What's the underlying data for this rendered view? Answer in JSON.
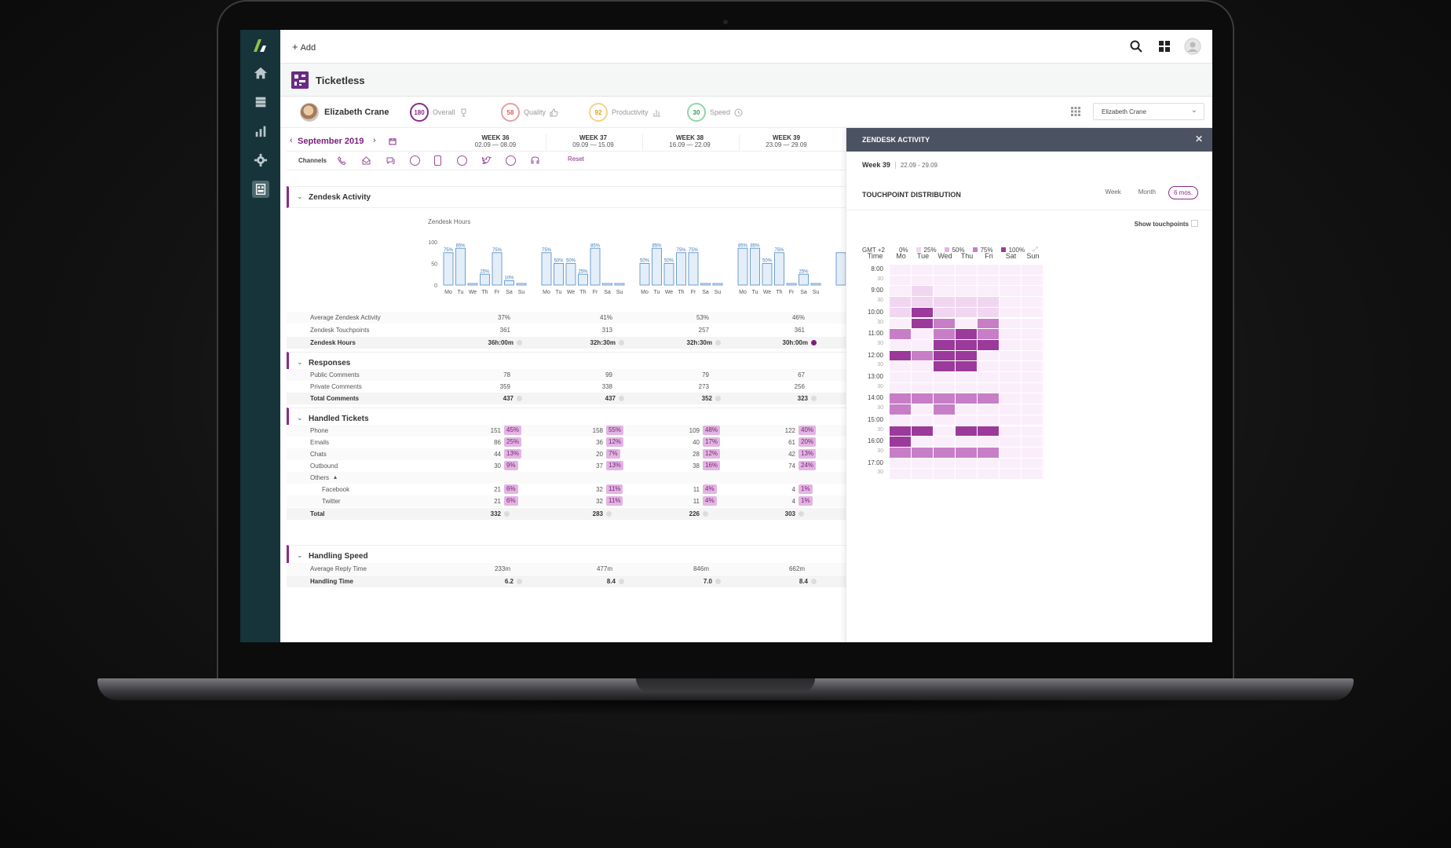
{
  "topbar": {
    "add_label": "Add"
  },
  "app": {
    "title": "Ticketless"
  },
  "agent": {
    "name": "Elizabeth Crane",
    "selector_value": "Elizabeth Crane",
    "scores": [
      {
        "value": "180",
        "label": "Overall",
        "color": "#8a2a8a"
      },
      {
        "value": "58",
        "label": "Quality",
        "color": "#e05a5a"
      },
      {
        "value": "92",
        "label": "Productivity",
        "color": "#f0b63a"
      },
      {
        "value": "30",
        "label": "Speed",
        "color": "#3fb36b"
      }
    ]
  },
  "period": {
    "month": "September 2019",
    "weeks": [
      {
        "name": "WEEK 36",
        "range": "02.09 — 08.09"
      },
      {
        "name": "WEEK 37",
        "range": "09.09 — 15.09"
      },
      {
        "name": "WEEK 38",
        "range": "16.09 — 22.09"
      },
      {
        "name": "WEEK 39",
        "range": "23.09 — 29.09"
      }
    ]
  },
  "channels": {
    "label": "Channels",
    "reset_label": "Reset"
  },
  "sections": {
    "zendesk_activity": "Zendesk Activity",
    "responses": "Responses",
    "handled_tickets": "Handled Tickets",
    "handling_speed": "Handling Speed"
  },
  "chart_data": {
    "type": "bar",
    "title": "Zendesk Hours",
    "ylim": [
      0,
      100
    ],
    "yticks": [
      "100",
      "50",
      "0"
    ],
    "day_labels": [
      "Mo",
      "Tu",
      "We",
      "Th",
      "Fr",
      "Sa",
      "Su"
    ],
    "series": [
      {
        "name": "WEEK 36",
        "values": [
          75,
          85,
          0,
          25,
          75,
          10,
          0
        ],
        "labels": [
          "75%",
          "85%",
          "",
          "25%",
          "75%",
          "10%",
          ""
        ]
      },
      {
        "name": "WEEK 37",
        "values": [
          75,
          50,
          50,
          25,
          85,
          0,
          0
        ],
        "labels": [
          "75%",
          "50%",
          "50%",
          "25%",
          "85%",
          "",
          ""
        ]
      },
      {
        "name": "WEEK 38",
        "values": [
          50,
          85,
          50,
          75,
          75,
          0,
          0
        ],
        "labels": [
          "50%",
          "85%",
          "50%",
          "75%",
          "75%",
          "",
          ""
        ]
      },
      {
        "name": "WEEK 39",
        "values": [
          85,
          85,
          50,
          75,
          0,
          25,
          0
        ],
        "labels": [
          "85%",
          "85%",
          "50%",
          "75%",
          "",
          "25%",
          ""
        ]
      }
    ]
  },
  "rows": {
    "avg_activity": {
      "label": "Average Zendesk Activity",
      "values": [
        "37%",
        "41%",
        "53%",
        "46%"
      ]
    },
    "touchpoints": {
      "label": "Zendesk Touchpoints",
      "values": [
        "361",
        "313",
        "257",
        "361"
      ]
    },
    "zendesk_hours": {
      "label": "Zendesk Hours",
      "values": [
        "36h:00m",
        "32h:30m",
        "32h:30m",
        "30h:00m"
      ]
    },
    "public_comments": {
      "label": "Public Comments",
      "values": [
        "78",
        "99",
        "79",
        "67"
      ]
    },
    "private_comments": {
      "label": "Private Comments",
      "values": [
        "359",
        "338",
        "273",
        "256"
      ]
    },
    "total_comments": {
      "label": "Total Comments",
      "values": [
        "437",
        "437",
        "352",
        "323"
      ]
    },
    "phone": {
      "label": "Phone",
      "values": [
        "151",
        "158",
        "109",
        "122"
      ],
      "pcts": [
        "45%",
        "55%",
        "48%",
        "40%"
      ]
    },
    "emails": {
      "label": "Emails",
      "values": [
        "86",
        "36",
        "40",
        "61"
      ],
      "pcts": [
        "25%",
        "12%",
        "17%",
        "20%"
      ]
    },
    "chats": {
      "label": "Chats",
      "values": [
        "44",
        "20",
        "28",
        "42"
      ],
      "pcts": [
        "13%",
        "7%",
        "12%",
        "13%"
      ]
    },
    "outbound": {
      "label": "Outbound",
      "values": [
        "30",
        "37",
        "38",
        "74"
      ],
      "pcts": [
        "9%",
        "13%",
        "16%",
        "24%"
      ]
    },
    "others": {
      "label": "Others"
    },
    "facebook": {
      "label": "Facebook",
      "values": [
        "21",
        "32",
        "11",
        "4"
      ],
      "pcts": [
        "6%",
        "11%",
        "4%",
        "1%"
      ]
    },
    "twitter": {
      "label": "Twitter",
      "values": [
        "21",
        "32",
        "11",
        "4"
      ],
      "pcts": [
        "6%",
        "11%",
        "4%",
        "1%"
      ]
    },
    "total": {
      "label": "Total",
      "values": [
        "332",
        "283",
        "226",
        "303"
      ]
    },
    "avg_reply": {
      "label": "Average Reply Time",
      "values": [
        "233m",
        "477m",
        "846m",
        "662m"
      ]
    },
    "handling_time": {
      "label": "Handling Time",
      "values": [
        "6.2",
        "8.4",
        "7.0",
        "8.4"
      ]
    }
  },
  "panel": {
    "title": "ZENDESK ACTIVITY",
    "week": "Week 39",
    "week_range": "22.09 - 29.09",
    "distribution_title": "TOUCHPOINT DISTRIBUTION",
    "tabs": [
      "Week",
      "Month",
      "6 mos."
    ],
    "active_tab": "6 mos.",
    "show_touchpoints": "Show touchpoints",
    "timezone": "GMT +2",
    "legend": [
      {
        "label": "0%",
        "color": ""
      },
      {
        "label": "25%",
        "color": "#f1d6f1"
      },
      {
        "label": "50%",
        "color": "#e3b4e3"
      },
      {
        "label": "75%",
        "color": "#c77ec7"
      },
      {
        "label": "100%",
        "color": "#9b3a9b"
      }
    ],
    "time_header": "Time",
    "days": [
      "Mo",
      "Tue",
      "Wed",
      "Thu",
      "Fri",
      "Sat",
      "Sun"
    ],
    "times": [
      "8:00",
      "30",
      "9:00",
      "30",
      "10:00",
      "30",
      "11:00",
      "30",
      "12:00",
      "30",
      "13:00",
      "30",
      "14:00",
      "30",
      "15:00",
      "30",
      "16:00",
      "30",
      "17:00",
      "30"
    ],
    "heatmap": [
      [
        0,
        0,
        0,
        0,
        0,
        0,
        0
      ],
      [
        0,
        0,
        0,
        0,
        0,
        0,
        0
      ],
      [
        0,
        1,
        0,
        0,
        0,
        0,
        0
      ],
      [
        1,
        1,
        1,
        1,
        1,
        0,
        0
      ],
      [
        1,
        4,
        1,
        1,
        1,
        0,
        0
      ],
      [
        0,
        4,
        3,
        0,
        3,
        0,
        0
      ],
      [
        3,
        0,
        3,
        4,
        3,
        0,
        0
      ],
      [
        0,
        0,
        4,
        4,
        4,
        0,
        0
      ],
      [
        4,
        3,
        4,
        4,
        0,
        0,
        0
      ],
      [
        0,
        0,
        4,
        4,
        0,
        0,
        0
      ],
      [
        0,
        0,
        0,
        0,
        0,
        0,
        0
      ],
      [
        0,
        0,
        0,
        0,
        0,
        0,
        0
      ],
      [
        3,
        3,
        3,
        3,
        3,
        0,
        0
      ],
      [
        3,
        0,
        3,
        0,
        0,
        0,
        0
      ],
      [
        0,
        0,
        0,
        0,
        0,
        0,
        0
      ],
      [
        4,
        4,
        0,
        4,
        4,
        0,
        0
      ],
      [
        4,
        0,
        0,
        0,
        0,
        0,
        0
      ],
      [
        3,
        3,
        3,
        3,
        3,
        0,
        0
      ],
      [
        0,
        0,
        0,
        0,
        0,
        0,
        0
      ],
      [
        0,
        0,
        0,
        0,
        0,
        0,
        0
      ],
      [
        0,
        0,
        0,
        0,
        0,
        0,
        0
      ],
      [
        0,
        0,
        0,
        0,
        0,
        0,
        0
      ]
    ]
  }
}
